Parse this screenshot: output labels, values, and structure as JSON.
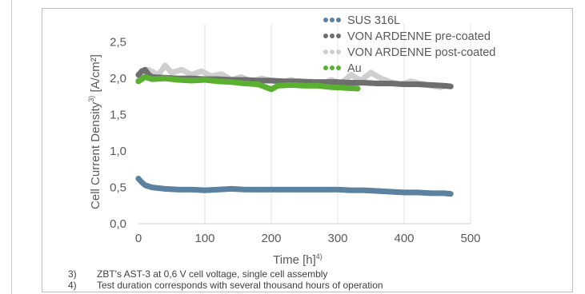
{
  "chart_data": {
    "type": "scatter",
    "xlabel": "Time [h]",
    "xlabel_sup": "4)",
    "ylabel": "Cell Current Density",
    "ylabel_sup": "3)",
    "ylabel_unit": " [A/cm²]",
    "xlim": [
      0,
      500
    ],
    "ylim": [
      0,
      2.75
    ],
    "x_ticks": [
      "0",
      "100",
      "200",
      "300",
      "400",
      "500"
    ],
    "y_ticks": [
      "0,0",
      "0,5",
      "1,0",
      "1,5",
      "2,0",
      "2,5"
    ],
    "y_tick_values": [
      0,
      0.5,
      1.0,
      1.5,
      2.0,
      2.5
    ],
    "x_tick_values": [
      0,
      100,
      200,
      300,
      400,
      500
    ],
    "grid": "vertical",
    "legend_position": "top-right",
    "series": [
      {
        "name": "SUS 316L",
        "color": "#5b82a0",
        "points": [
          [
            0,
            0.62
          ],
          [
            5,
            0.57
          ],
          [
            10,
            0.53
          ],
          [
            20,
            0.5
          ],
          [
            30,
            0.49
          ],
          [
            40,
            0.48
          ],
          [
            60,
            0.47
          ],
          [
            80,
            0.47
          ],
          [
            100,
            0.46
          ],
          [
            120,
            0.47
          ],
          [
            140,
            0.48
          ],
          [
            160,
            0.47
          ],
          [
            180,
            0.47
          ],
          [
            200,
            0.47
          ],
          [
            220,
            0.47
          ],
          [
            240,
            0.47
          ],
          [
            260,
            0.47
          ],
          [
            280,
            0.47
          ],
          [
            300,
            0.47
          ],
          [
            320,
            0.46
          ],
          [
            340,
            0.46
          ],
          [
            360,
            0.45
          ],
          [
            380,
            0.44
          ],
          [
            400,
            0.43
          ],
          [
            420,
            0.43
          ],
          [
            440,
            0.42
          ],
          [
            460,
            0.42
          ],
          [
            470,
            0.41
          ]
        ]
      },
      {
        "name": "VON ARDENNE pre-coated",
        "color": "#6e6e6e",
        "points": [
          [
            0,
            2.05
          ],
          [
            5,
            2.1
          ],
          [
            10,
            2.12
          ],
          [
            15,
            2.06
          ],
          [
            20,
            2.02
          ],
          [
            40,
            2.01
          ],
          [
            60,
            2.0
          ],
          [
            80,
            2.0
          ],
          [
            100,
            1.99
          ],
          [
            120,
            1.99
          ],
          [
            140,
            1.98
          ],
          [
            160,
            1.98
          ],
          [
            180,
            1.97
          ],
          [
            200,
            1.97
          ],
          [
            220,
            1.96
          ],
          [
            240,
            1.96
          ],
          [
            260,
            1.95
          ],
          [
            280,
            1.95
          ],
          [
            300,
            1.95
          ],
          [
            320,
            1.94
          ],
          [
            340,
            1.94
          ],
          [
            360,
            1.93
          ],
          [
            380,
            1.93
          ],
          [
            400,
            1.92
          ],
          [
            420,
            1.92
          ],
          [
            440,
            1.91
          ],
          [
            460,
            1.9
          ],
          [
            470,
            1.89
          ]
        ]
      },
      {
        "name": "VON ARDENNE post-coated",
        "color": "#cfcfcf",
        "points": [
          [
            0,
            1.98
          ],
          [
            15,
            2.12
          ],
          [
            30,
            2.05
          ],
          [
            40,
            2.18
          ],
          [
            50,
            2.08
          ],
          [
            65,
            2.12
          ],
          [
            80,
            2.05
          ],
          [
            95,
            2.1
          ],
          [
            110,
            2.03
          ],
          [
            125,
            2.06
          ],
          [
            140,
            1.98
          ],
          [
            155,
            2.02
          ],
          [
            170,
            1.96
          ],
          [
            185,
            2.0
          ],
          [
            200,
            1.97
          ],
          [
            215,
            1.95
          ],
          [
            230,
            1.98
          ],
          [
            245,
            1.93
          ],
          [
            260,
            1.96
          ],
          [
            275,
            1.92
          ],
          [
            290,
            1.98
          ],
          [
            305,
            1.93
          ],
          [
            320,
            2.05
          ],
          [
            335,
            1.97
          ],
          [
            350,
            2.08
          ],
          [
            365,
            2.0
          ],
          [
            380,
            1.95
          ],
          [
            395,
            1.92
          ],
          [
            410,
            1.96
          ],
          [
            425,
            1.93
          ],
          [
            440,
            1.9
          ],
          [
            455,
            1.88
          ],
          [
            465,
            1.9
          ]
        ]
      },
      {
        "name": "Au",
        "color": "#5ab030",
        "points": [
          [
            0,
            1.96
          ],
          [
            10,
            2.02
          ],
          [
            20,
            1.99
          ],
          [
            40,
            2.0
          ],
          [
            60,
            1.98
          ],
          [
            80,
            1.97
          ],
          [
            100,
            1.98
          ],
          [
            120,
            1.96
          ],
          [
            140,
            1.95
          ],
          [
            160,
            1.93
          ],
          [
            180,
            1.92
          ],
          [
            200,
            1.85
          ],
          [
            210,
            1.9
          ],
          [
            230,
            1.91
          ],
          [
            250,
            1.9
          ],
          [
            270,
            1.9
          ],
          [
            290,
            1.88
          ],
          [
            310,
            1.87
          ],
          [
            330,
            1.86
          ]
        ]
      }
    ],
    "footnotes": [
      {
        "num": "3)",
        "text": "ZBT's AST-3 at 0,6 V cell voltage, single cell assembly"
      },
      {
        "num": "4)",
        "text": "Test duration corresponds with several thousand hours of operation"
      }
    ]
  }
}
